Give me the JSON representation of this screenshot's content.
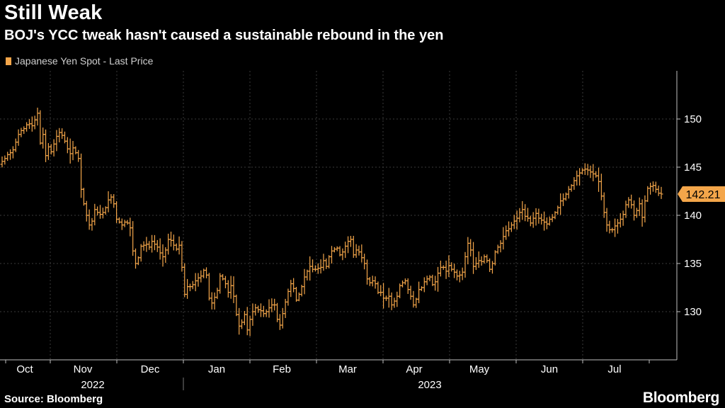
{
  "header": {
    "title": "Still Weak",
    "subtitle": "BOJ's YCC tweak hasn't caused a sustainable rebound in the yen"
  },
  "legend": {
    "label": "Japanese Yen Spot - Last Price",
    "color": "#f4a64a"
  },
  "footer": {
    "source": "Source: Bloomberg",
    "brand": "Bloomberg"
  },
  "colors": {
    "background": "#000000",
    "series": "#f4a64a",
    "grid": "#3a3a3a",
    "axis": "#bfbfbf",
    "text": "#ffffff"
  },
  "chart_data": {
    "type": "ohlc",
    "title": "Still Weak",
    "subtitle": "BOJ's YCC tweak hasn't caused a sustainable rebound in the yen",
    "series_name": "Japanese Yen Spot - Last Price",
    "y_axis_side": "right",
    "ylim": [
      125,
      155
    ],
    "yticks": [
      130,
      135,
      140,
      145,
      150
    ],
    "grid": true,
    "last_value_label": "142.21",
    "month_labels": [
      "Oct",
      "Nov",
      "Dec",
      "Jan",
      "Feb",
      "Mar",
      "Apr",
      "May",
      "Jun",
      "Jul"
    ],
    "year_labels": [
      {
        "label": "2022",
        "months": [
          "Oct",
          "Nov",
          "Dec"
        ]
      },
      {
        "label": "2023",
        "months": [
          "Jan",
          "Feb",
          "Mar",
          "Apr",
          "May",
          "Jun",
          "Jul"
        ]
      }
    ],
    "daily_close": [
      145.6,
      145.9,
      146.3,
      146.5,
      146.8,
      147.6,
      148.4,
      148.8,
      149.0,
      149.4,
      149.5,
      149.3,
      149.9,
      150.6,
      147.5,
      148.4,
      146.2,
      147.1,
      146.6,
      147.4,
      148.2,
      148.6,
      148.3,
      147.7,
      146.9,
      146.4,
      147.0,
      146.5,
      145.9,
      142.7,
      141.2,
      140.0,
      139.0,
      139.4,
      140.6,
      140.3,
      140.1,
      140.3,
      140.8,
      141.6,
      141.9,
      141.2,
      139.6,
      139.3,
      139.0,
      139.3,
      139.2,
      138.7,
      136.3,
      135.0,
      135.6,
      136.8,
      136.9,
      137.0,
      136.7,
      137.3,
      137.0,
      136.7,
      136.1,
      135.7,
      136.4,
      137.5,
      137.4,
      136.9,
      136.5,
      136.9,
      134.6,
      131.8,
      132.6,
      132.6,
      132.8,
      133.2,
      133.5,
      133.7,
      134.3,
      133.8,
      131.4,
      130.9,
      131.5,
      132.2,
      133.7,
      133.4,
      132.9,
      132.0,
      132.7,
      131.6,
      129.7,
      128.5,
      128.9,
      129.7,
      128.1,
      129.2,
      130.0,
      130.4,
      130.2,
      130.1,
      129.8,
      130.0,
      130.4,
      130.7,
      130.7,
      129.2,
      128.6,
      129.8,
      131.0,
      132.1,
      132.9,
      132.4,
      131.2,
      131.8,
      132.6,
      133.6,
      134.2,
      134.7,
      134.4,
      134.4,
      134.5,
      134.6,
      135.3,
      134.7,
      135.7,
      136.3,
      136.5,
      136.6,
      135.9,
      136.2,
      136.8,
      137.3,
      137.5,
      135.9,
      136.4,
      136.2,
      135.6,
      135.0,
      133.4,
      133.0,
      133.2,
      132.9,
      132.0,
      132.0,
      131.4,
      131.4,
      131.6,
      130.7,
      131.1,
      131.6,
      132.7,
      133.0,
      133.2,
      132.3,
      131.6,
      130.7,
      131.3,
      132.3,
      132.5,
      133.1,
      133.4,
      133.6,
      132.8,
      133.1,
      134.0,
      134.6,
      134.6,
      134.2,
      134.8,
      134.4,
      134.1,
      133.7,
      133.8,
      134.1,
      135.7,
      137.1,
      136.4,
      134.7,
      135.0,
      135.3,
      135.2,
      135.7,
      135.3,
      134.4,
      135.0,
      136.2,
      136.7,
      137.1,
      137.8,
      138.4,
      138.6,
      139.0,
      139.4,
      139.7,
      140.3,
      140.6,
      139.9,
      139.7,
      139.2,
      139.7,
      140.2,
      139.7,
      139.5,
      139.3,
      139.1,
      139.6,
      139.8,
      140.3,
      140.8,
      141.5,
      141.7,
      142.2,
      142.7,
      143.1,
      143.6,
      144.1,
      144.4,
      144.7,
      144.8,
      144.7,
      144.5,
      144.3,
      144.1,
      143.5,
      142.0,
      140.3,
      139.0,
      138.5,
      138.5,
      138.9,
      139.2,
      139.6,
      140.1,
      141.1,
      141.6,
      141.1,
      140.0,
      140.5,
      141.2,
      139.8,
      141.5,
      142.8,
      143.0,
      143.1,
      142.7,
      142.3,
      142.21
    ]
  }
}
